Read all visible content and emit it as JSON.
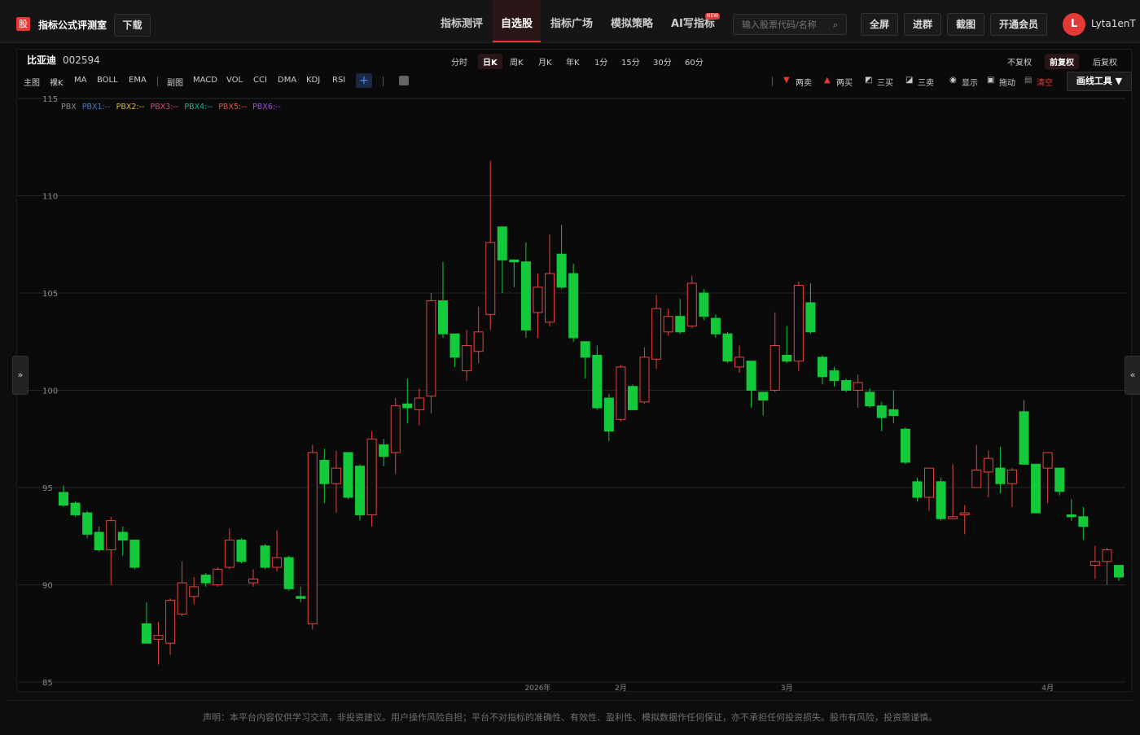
{
  "header": {
    "logo": "股",
    "brand": "指标公式评测室",
    "download": "下载",
    "nav": [
      "指标测评",
      "自选股",
      "指标广场",
      "模拟策略",
      "AI写指标"
    ],
    "new_badge": "NEW",
    "search_placeholder": "输入股票代码/名称",
    "buttons": [
      "全屏",
      "进群",
      "截图",
      "开通会员"
    ],
    "avatar": "L",
    "user": "Lyta1enT"
  },
  "stock": {
    "name": "比亚迪",
    "code": "002594"
  },
  "periods": [
    "分时",
    "日K",
    "周K",
    "月K",
    "年K",
    "1分",
    "15分",
    "30分",
    "60分"
  ],
  "adjust": [
    "不复权",
    "前复权",
    "后复权"
  ],
  "toolbar_left": [
    "主图",
    "裸K",
    "MA",
    "BOLL",
    "EMA",
    "副图",
    "MACD",
    "VOL",
    "CCI",
    "DMA",
    "KDJ",
    "RSI"
  ],
  "toolbar_right": [
    "两卖",
    "两买",
    "三买",
    "三卖",
    "显示",
    "拖动",
    "清空",
    "画线工具 ▼"
  ],
  "chart_data": {
    "type": "candlestick",
    "up_color": "#e5433d",
    "down_color": "#14c93a",
    "grid": true,
    "legend": [
      {
        "name": "PBX",
        "color": "#8a8a8a"
      },
      {
        "name": "PBX1:--",
        "color": "#3f7fd6"
      },
      {
        "name": "PBX2:--",
        "color": "#e5b51e"
      },
      {
        "name": "PBX3:--",
        "color": "#e0437a"
      },
      {
        "name": "PBX4:--",
        "color": "#17b59a"
      },
      {
        "name": "PBX5:--",
        "color": "#e55a3d"
      },
      {
        "name": "PBX6:--",
        "color": "#9b4fd1"
      }
    ],
    "ylim": [
      85,
      115
    ],
    "yticks": [
      85,
      90,
      95,
      100,
      105,
      110,
      115
    ],
    "categories": [
      null,
      null,
      null,
      null,
      null,
      null,
      null,
      null,
      null,
      null,
      null,
      null,
      null,
      null,
      null,
      null,
      null,
      null,
      null,
      null,
      null,
      null,
      null,
      null,
      null,
      null,
      null,
      null,
      null,
      null,
      null,
      null,
      null,
      null,
      null,
      null,
      null,
      null,
      null,
      null,
      "2026年",
      null,
      null,
      null,
      null,
      null,
      null,
      "2月",
      null,
      null,
      null,
      null,
      null,
      null,
      null,
      null,
      null,
      null,
      null,
      null,
      null,
      "3月",
      null,
      null,
      null,
      null,
      null,
      null,
      null,
      null,
      null,
      null,
      null,
      null,
      null,
      null,
      null,
      null,
      null,
      null,
      null,
      null,
      null,
      "4月",
      null,
      null,
      null,
      null,
      null,
      null
    ],
    "open": [
      94.75,
      94.2,
      93.7,
      92.7,
      91.8,
      92.7,
      92.3,
      88.0,
      87.2,
      87.0,
      88.5,
      89.4,
      90.5,
      90.0,
      90.9,
      92.3,
      90.1,
      92.0,
      90.9,
      91.4,
      89.4,
      88.0,
      96.4,
      95.2,
      96.8,
      96.1,
      93.6,
      97.2,
      96.8,
      99.3,
      99.0,
      99.7,
      104.6,
      102.9,
      101.0,
      102.0,
      103.9,
      108.4,
      106.7,
      106.6,
      104.0,
      103.5,
      107.0,
      106.0,
      102.5,
      101.8,
      99.6,
      98.5,
      100.2,
      99.4,
      101.6,
      103.0,
      103.8,
      103.3,
      105.0,
      103.7,
      102.9,
      101.2,
      101.5,
      99.9,
      100.0,
      101.8,
      101.5,
      104.5,
      101.7,
      101.0,
      100.5,
      100.0,
      99.9,
      99.2,
      99.0,
      98.0,
      95.3,
      94.5,
      95.3,
      93.4,
      93.6,
      95.0,
      95.8,
      96.0,
      95.2,
      98.9,
      96.2,
      96.0,
      96.0,
      93.6,
      93.5,
      91.0,
      91.2,
      91.0
    ],
    "high": [
      95.1,
      94.3,
      93.8,
      93.0,
      93.5,
      93.0,
      92.3,
      89.1,
      88.1,
      89.3,
      91.2,
      90.4,
      90.6,
      90.9,
      92.9,
      92.4,
      90.8,
      92.1,
      92.8,
      91.5,
      89.9,
      97.2,
      97.0,
      96.9,
      96.8,
      96.2,
      97.9,
      97.5,
      99.6,
      100.6,
      100.1,
      105.0,
      106.6,
      102.9,
      103.1,
      104.3,
      111.8,
      108.4,
      106.7,
      107.6,
      106.0,
      108.0,
      108.5,
      106.5,
      102.5,
      102.3,
      99.8,
      101.3,
      100.3,
      102.2,
      104.9,
      104.2,
      104.7,
      105.9,
      105.2,
      103.9,
      103.0,
      102.3,
      101.5,
      99.9,
      104.0,
      103.3,
      105.6,
      105.5,
      101.8,
      101.2,
      100.6,
      100.8,
      100.1,
      99.4,
      100.0,
      98.1,
      95.5,
      96.0,
      95.5,
      96.2,
      94.1,
      97.2,
      96.9,
      97.1,
      96.0,
      99.5,
      96.2,
      96.8,
      96.0,
      94.4,
      94.0,
      92.0,
      91.9,
      91.0
    ],
    "low": [
      94.0,
      93.5,
      92.4,
      91.7,
      90.0,
      91.5,
      90.8,
      87.0,
      85.9,
      86.4,
      88.4,
      89.0,
      89.9,
      89.9,
      90.8,
      91.1,
      89.9,
      90.8,
      90.7,
      89.7,
      89.1,
      87.7,
      94.2,
      93.7,
      94.4,
      93.3,
      93.0,
      96.1,
      95.7,
      98.3,
      98.2,
      98.8,
      102.7,
      101.2,
      100.5,
      101.4,
      103.1,
      105.0,
      105.3,
      102.7,
      102.7,
      103.3,
      105.2,
      102.5,
      100.6,
      99.0,
      97.4,
      98.4,
      99.0,
      99.3,
      101.1,
      102.8,
      102.9,
      103.2,
      103.6,
      102.7,
      101.4,
      100.9,
      99.1,
      98.7,
      99.9,
      101.4,
      101.0,
      102.9,
      100.3,
      100.2,
      99.9,
      99.1,
      99.1,
      97.9,
      98.3,
      96.2,
      94.3,
      93.8,
      93.3,
      93.4,
      92.6,
      95.0,
      94.5,
      94.7,
      94.0,
      96.2,
      93.7,
      94.2,
      94.6,
      93.3,
      92.3,
      90.3,
      90.0,
      90.2
    ],
    "close": [
      94.1,
      93.6,
      92.6,
      91.8,
      93.3,
      92.3,
      90.9,
      87.0,
      87.4,
      89.2,
      90.1,
      89.9,
      90.1,
      90.8,
      92.3,
      91.2,
      90.3,
      90.9,
      91.4,
      89.8,
      89.3,
      96.8,
      95.2,
      96.0,
      94.5,
      93.6,
      97.5,
      96.6,
      99.2,
      99.1,
      99.6,
      104.6,
      102.9,
      101.7,
      102.3,
      103.0,
      107.6,
      106.7,
      106.6,
      103.1,
      105.3,
      106.0,
      105.3,
      102.7,
      101.7,
      99.1,
      97.9,
      101.2,
      99.0,
      101.7,
      104.2,
      103.8,
      103.0,
      105.5,
      103.8,
      102.9,
      101.5,
      101.7,
      100.0,
      99.5,
      102.3,
      101.5,
      105.4,
      103.0,
      100.7,
      100.5,
      100.0,
      100.4,
      99.2,
      98.6,
      98.7,
      96.3,
      94.5,
      96.0,
      93.4,
      93.5,
      93.7,
      95.9,
      96.5,
      95.2,
      95.9,
      96.2,
      93.7,
      96.8,
      94.8,
      93.5,
      93.0,
      91.2,
      91.8,
      90.4
    ]
  },
  "disclaimer": "声明：本平台内容仅供学习交流，非投资建议。用户操作风险自担；平台不对指标的准确性、有效性、盈利性、模拟数据作任何保证，亦不承担任何投资损失。股市有风险，投资需谨慎。"
}
